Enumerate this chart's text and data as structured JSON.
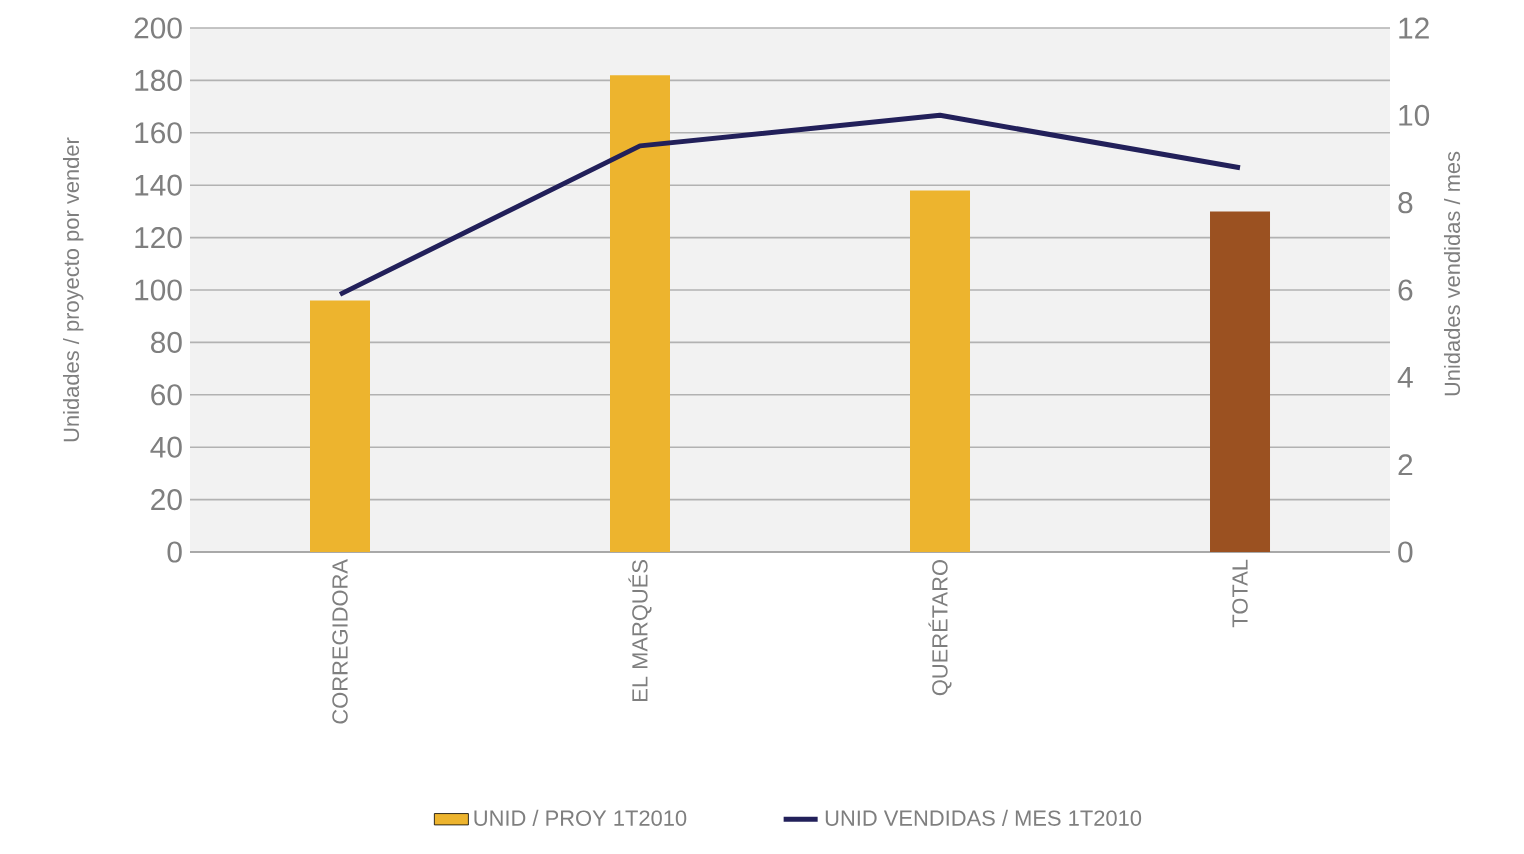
{
  "chart_data": {
    "type": "bar",
    "categories": [
      "CORREGIDORA",
      "EL MARQUÉS",
      "QUERÉTARO",
      "TOTAL"
    ],
    "ylabel": "Unidades / proyecto por vender",
    "y2label": "Unidades vendidas / mes",
    "ylim": [
      0,
      200
    ],
    "yticks": [
      0,
      20,
      40,
      60,
      80,
      100,
      120,
      140,
      160,
      180,
      200
    ],
    "y2lim": [
      0,
      12
    ],
    "y2ticks": [
      0,
      2,
      4,
      6,
      8,
      10,
      12
    ],
    "grid": "y",
    "legend": "bottom",
    "series": [
      {
        "name": "UNID  / PROY  1T2010",
        "color": "#edb42e",
        "colors": [
          "#edb42e",
          "#edb42e",
          "#edb42e",
          "#9b5121"
        ],
        "values": [
          96,
          182,
          138,
          130
        ]
      },
      {
        "name": "UNID VENDIDAS / MES 1T2010",
        "type": "line",
        "axis": "y2",
        "color": "#22205a",
        "marker": "none",
        "line_style": "solid",
        "values": [
          5.9,
          9.3,
          10.0,
          8.8
        ]
      }
    ]
  }
}
